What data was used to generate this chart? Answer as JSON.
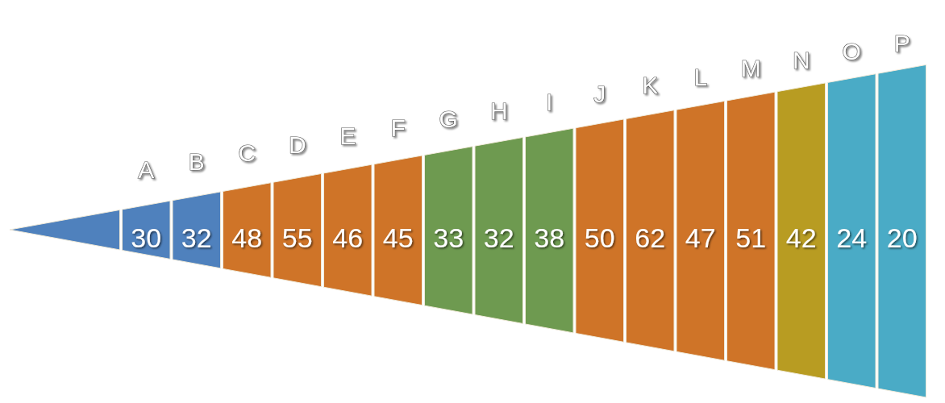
{
  "chart_data": {
    "type": "other",
    "categories": [
      "A",
      "B",
      "C",
      "D",
      "E",
      "F",
      "G",
      "H",
      "I",
      "J",
      "K",
      "L",
      "M",
      "N",
      "O",
      "P"
    ],
    "values": [
      30,
      32,
      48,
      55,
      46,
      45,
      33,
      32,
      38,
      50,
      62,
      47,
      51,
      42,
      24,
      20
    ],
    "colors": [
      "#4f81bd",
      "#4f81bd",
      "#cf7428",
      "#cf7428",
      "#cf7428",
      "#cf7428",
      "#6e9a50",
      "#6e9a50",
      "#6e9a50",
      "#cf7428",
      "#cf7428",
      "#cf7428",
      "#cf7428",
      "#b89c22",
      "#4aabc6",
      "#4aabc6"
    ],
    "data_labels": true
  }
}
